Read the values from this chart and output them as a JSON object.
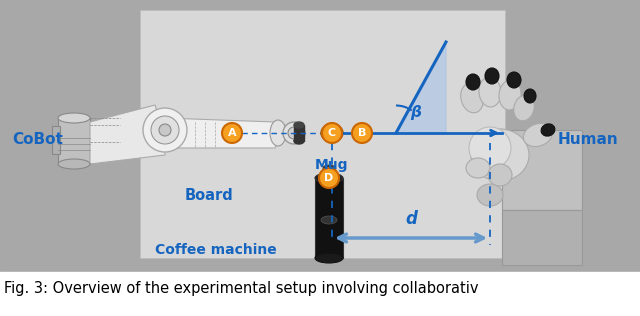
{
  "fig_width": 6.4,
  "fig_height": 3.16,
  "dpi": 100,
  "caption": "Fig. 3: Overview of the experimental setup involving collaborativ",
  "caption_fontsize": 10.5,
  "label_cobot": "CoBot",
  "label_human": "Human",
  "label_mug": "Mug",
  "label_board": "Board",
  "label_coffee": "Coffee machine",
  "label_d": "d",
  "label_beta": "β",
  "label_A": "A",
  "label_B": "B",
  "label_C": "C",
  "label_D": "D",
  "blue": "#1565C0",
  "light_blue_fill": "#aac4e8",
  "orange": "#F5A020",
  "outer_bg": "#a8a8a8",
  "board_bg": "#d0d0d0",
  "white_panel": "#e8e8e8"
}
